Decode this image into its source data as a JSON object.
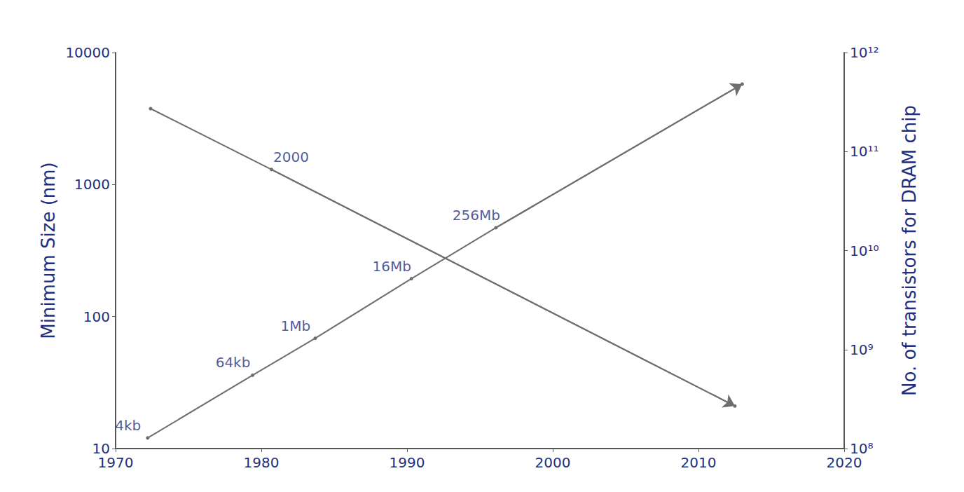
{
  "chart_data": {
    "type": "line",
    "log": "y",
    "grid": false,
    "ylabel": "Minimum Size (nm)",
    "y2label": "No. of transistors for DRAM chip",
    "xlim": [
      1970,
      2020
    ],
    "xticks": [
      1970,
      1980,
      1990,
      2000,
      2010,
      2020
    ],
    "ylim": [
      10,
      10000
    ],
    "yticks": [
      10,
      100,
      1000,
      10000
    ],
    "y2lim": [
      100000000,
      1000000000000
    ],
    "y2ticks": [
      {
        "value": 100000000,
        "label": "10⁸"
      },
      {
        "value": 1000000000,
        "label": "10⁹"
      },
      {
        "value": 10000000000,
        "label": "10¹⁰"
      },
      {
        "value": 100000000000,
        "label": "10¹¹"
      },
      {
        "value": 1000000000000,
        "label": "10¹²"
      }
    ],
    "series": [
      {
        "color": "#6e6e6e",
        "axis": "y",
        "line_style": "solid",
        "marker": "arrow",
        "x": [
          1972.4,
          1980.7,
          2012.5
        ],
        "values": [
          3760,
          1300,
          21
        ]
      },
      {
        "color": "#6e6e6e",
        "axis": "y2",
        "line_style": "solid",
        "marker": "arrow",
        "x": [
          1972.2,
          1979.4,
          1983.7,
          1990.3,
          1996.1,
          2013.0
        ],
        "values": [
          128000000,
          550000000,
          1300000000,
          5200000000,
          17000000000,
          480000000000
        ]
      }
    ],
    "annotations": [
      {
        "text": "2000",
        "x": 1980.7,
        "y": 1300,
        "axis": "y"
      },
      {
        "text": "4kb",
        "x": 1972.2,
        "y": 128000000,
        "axis": "y2"
      },
      {
        "text": "64kb",
        "x": 1979.4,
        "y": 550000000,
        "axis": "y2"
      },
      {
        "text": "1Mb",
        "x": 1983.7,
        "y": 1300000000,
        "axis": "y2"
      },
      {
        "text": "16Mb",
        "x": 1990.3,
        "y": 5200000000,
        "axis": "y2"
      },
      {
        "text": "256Mb",
        "x": 1996.1,
        "y": 17000000000,
        "axis": "y2"
      }
    ]
  }
}
